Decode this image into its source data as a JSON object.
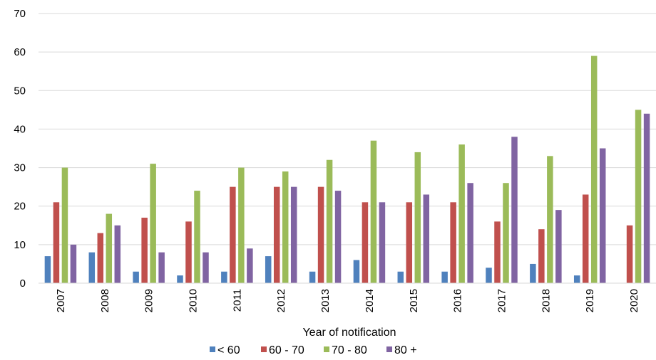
{
  "chart_data": {
    "type": "bar",
    "title": "",
    "xlabel": "Year of notification",
    "ylabel": "",
    "ylim": [
      0,
      70
    ],
    "yticks": [
      0,
      10,
      20,
      30,
      40,
      50,
      60,
      70
    ],
    "grid": true,
    "legend_position": "bottom",
    "categories": [
      "2007",
      "2008",
      "2009",
      "2010",
      "2011",
      "2012",
      "2013",
      "2014",
      "2015",
      "2016",
      "2017",
      "2018",
      "2019",
      "2020"
    ],
    "series": [
      {
        "name": "< 60",
        "color": "#4F81BD",
        "values": [
          7,
          8,
          3,
          2,
          3,
          7,
          3,
          6,
          3,
          3,
          4,
          5,
          2,
          0
        ]
      },
      {
        "name": "60 - 70",
        "color": "#C0504D",
        "values": [
          21,
          13,
          17,
          16,
          25,
          25,
          25,
          21,
          21,
          21,
          16,
          14,
          23,
          15
        ]
      },
      {
        "name": "70 - 80",
        "color": "#9BBB59",
        "values": [
          30,
          18,
          31,
          24,
          30,
          29,
          32,
          37,
          34,
          36,
          26,
          33,
          59,
          45
        ]
      },
      {
        "name": "80 +",
        "color": "#8064A2",
        "values": [
          10,
          15,
          8,
          8,
          9,
          25,
          24,
          21,
          23,
          26,
          38,
          19,
          35,
          44
        ]
      }
    ]
  }
}
